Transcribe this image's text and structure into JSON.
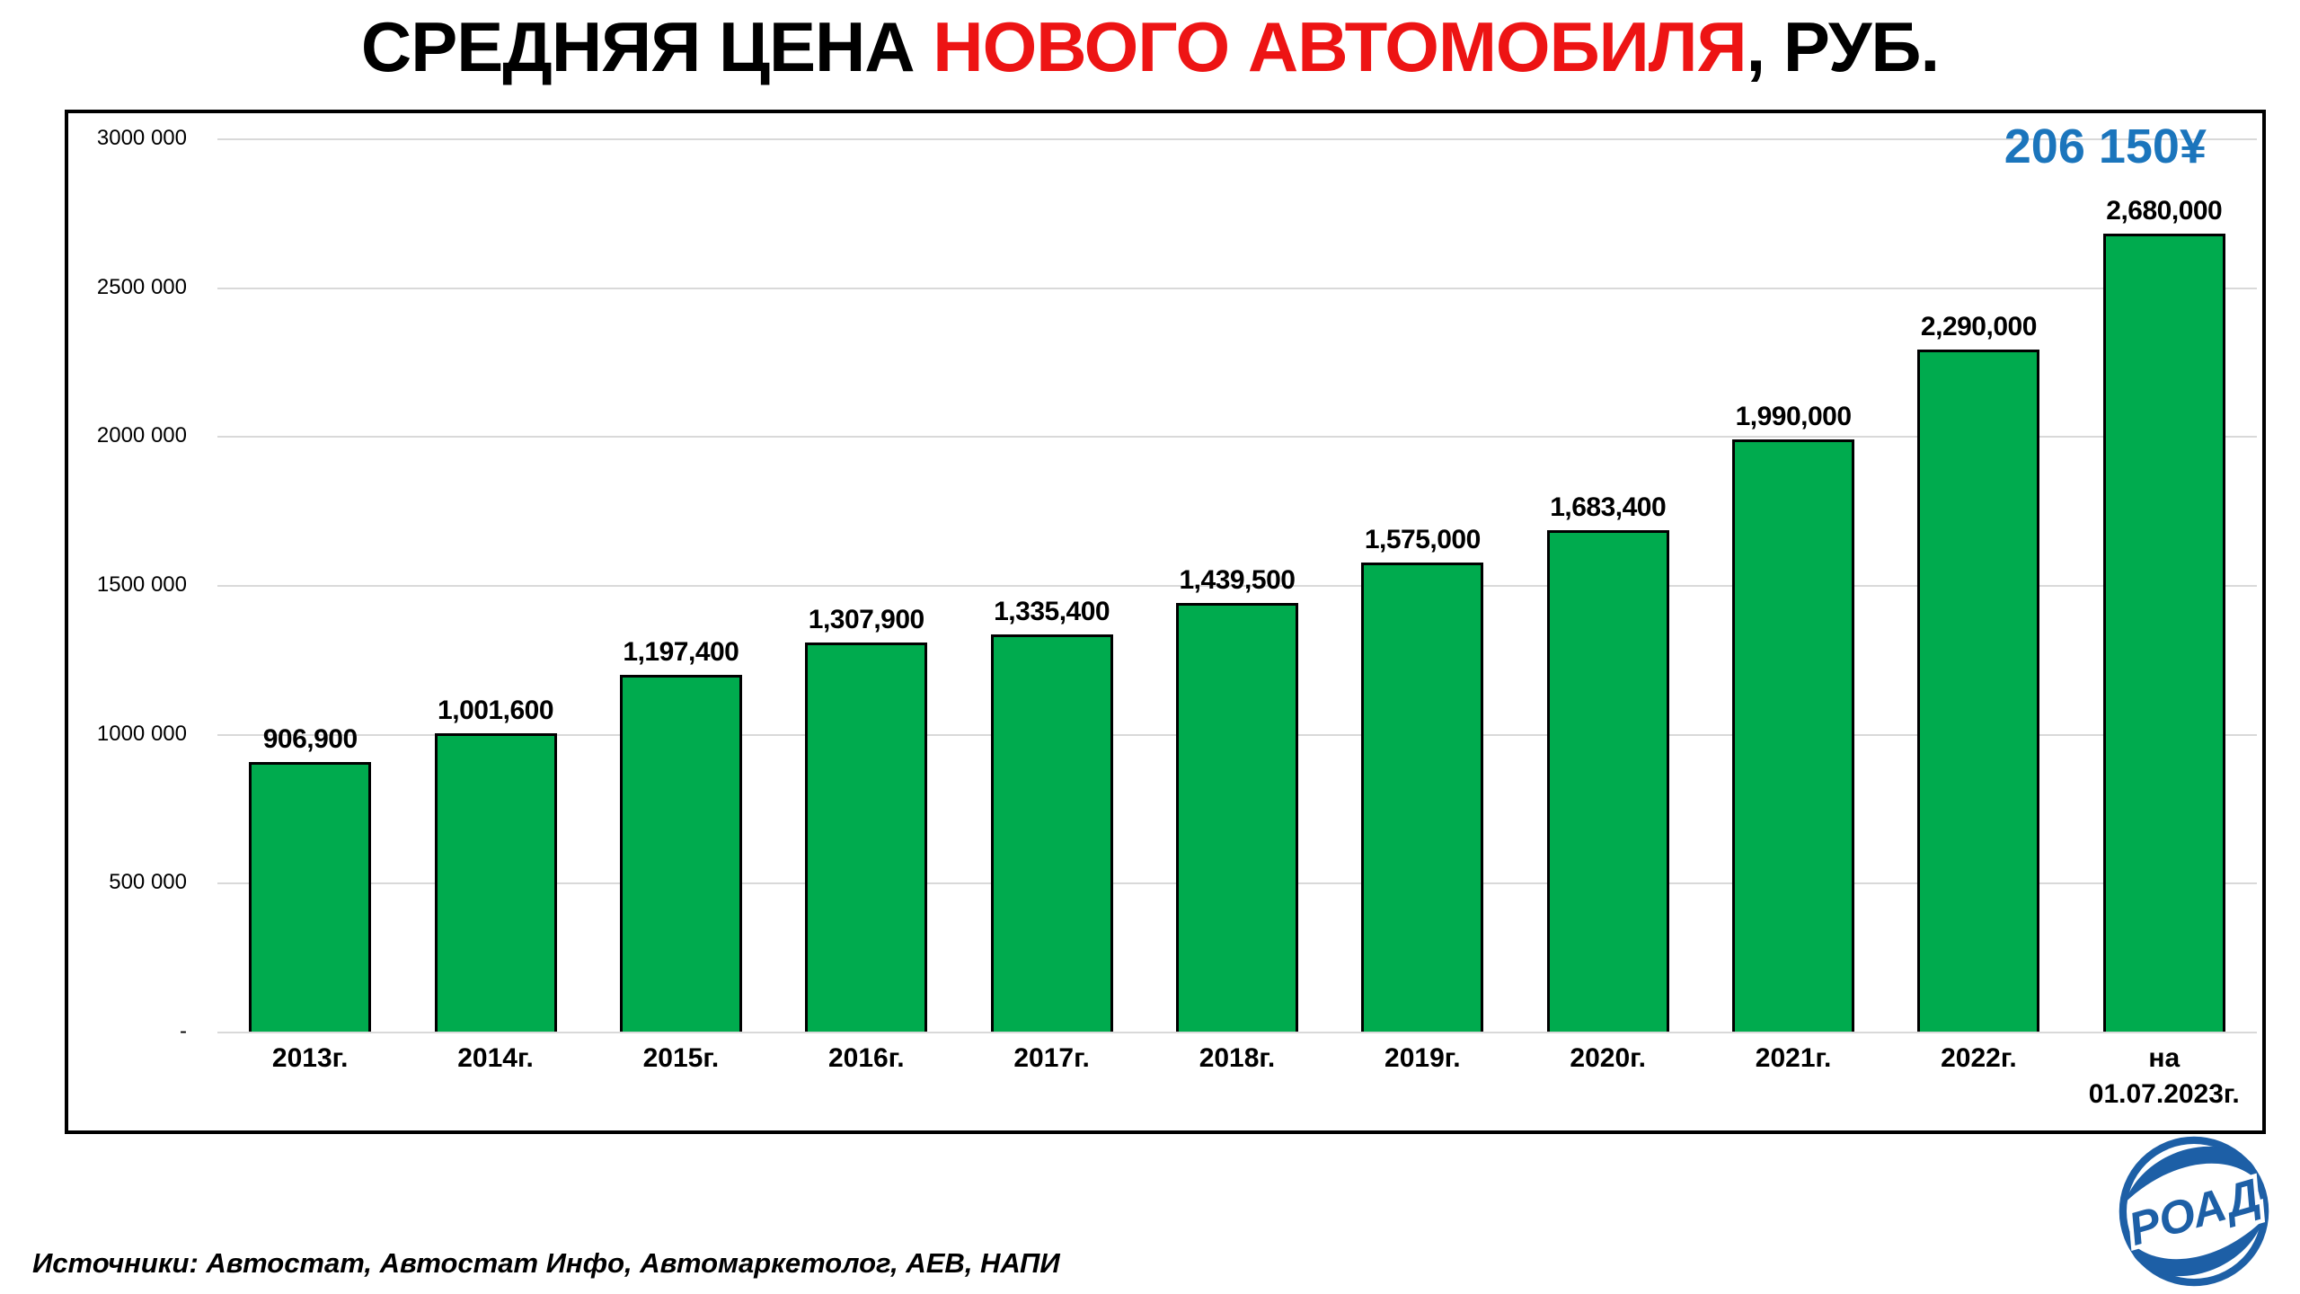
{
  "title": {
    "prefix": "СРЕДНЯЯ ЦЕНА ",
    "highlight": "НОВОГО АВТОМОБИЛЯ",
    "suffix": ", РУБ."
  },
  "annotation": {
    "text": "206 150¥",
    "color": "#1B75BC"
  },
  "footer": {
    "sources": "Источники: Автостат, Автостат Инфо, Автомаркетолог, АЕВ, НАПИ"
  },
  "logo": {
    "text": "РОАД",
    "color": "#1D5FA6"
  },
  "colors": {
    "bar_fill": "#00AB4E",
    "bar_border": "#000000",
    "title_accent": "#ED1414",
    "gridline": "#D9D9D9",
    "axis_text": "#000000"
  },
  "chart_data": {
    "type": "bar",
    "title": "СРЕДНЯЯ ЦЕНА НОВОГО АВТОМОБИЛЯ, РУБ.",
    "categories": [
      "2013г.",
      "2014г.",
      "2015г.",
      "2016г.",
      "2017г.",
      "2018г.",
      "2019г.",
      "2020г.",
      "2021г.",
      "2022г.",
      "на\n01.07.2023г."
    ],
    "values": [
      906900,
      1001600,
      1197400,
      1307900,
      1335400,
      1439500,
      1575000,
      1683400,
      1990000,
      2290000,
      2680000
    ],
    "value_labels": [
      "906,900",
      "1,001,600",
      "1,197,400",
      "1,307,900",
      "1,335,400",
      "1,439,500",
      "1,575,000",
      "1,683,400",
      "1,990,000",
      "2,290,000",
      "2,680,000"
    ],
    "ylim": [
      0,
      3000000
    ],
    "ytick_labels": [
      "3000 000",
      "2500 000",
      "2000 000",
      "1500 000",
      "1000 000",
      "500 000",
      "-"
    ],
    "ytick_values": [
      3000000,
      2500000,
      2000000,
      1500000,
      1000000,
      500000,
      0
    ],
    "grid": "horizontal",
    "legend": "none",
    "bar_color": "#00AB4E",
    "annotation": "206 150¥"
  }
}
